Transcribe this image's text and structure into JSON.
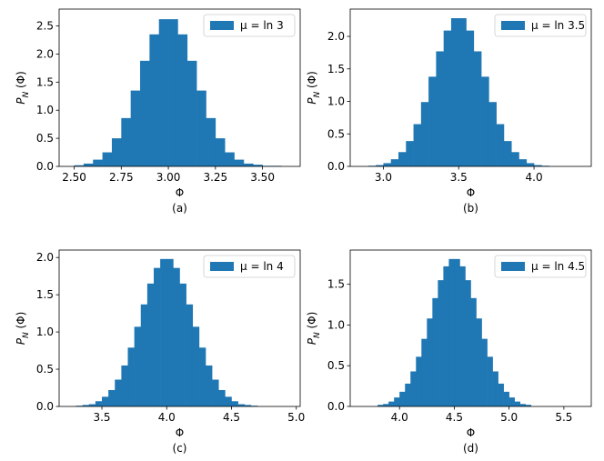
{
  "chart_data": [
    {
      "type": "histogram",
      "xlabel": "Φ",
      "ylabel": "P_N (Φ)",
      "caption": "(a)",
      "legend": "upper right",
      "color": "#1f77b4",
      "series": [
        {
          "name": "μ = ln 3",
          "color": "#1f77b4"
        }
      ],
      "bins": [
        2.5,
        2.55,
        2.6,
        2.65,
        2.7,
        2.75,
        2.8,
        2.85,
        2.9,
        2.95,
        3,
        3.05,
        3.1,
        3.15,
        3.2,
        3.25,
        3.3,
        3.35,
        3.4,
        3.45,
        3.5,
        3.55,
        3.6
      ],
      "counts": [
        0.02,
        0.05,
        0.12,
        0.25,
        0.5,
        0.86,
        1.35,
        1.88,
        2.35,
        2.62,
        2.62,
        2.35,
        1.88,
        1.35,
        0.86,
        0.5,
        0.25,
        0.12,
        0.05,
        0.03,
        0.01,
        0.01
      ],
      "xlim": [
        2.42,
        3.7
      ],
      "xticks": [
        {
          "value": 2.5,
          "label": "2.50"
        },
        2.75,
        {
          "value": 3,
          "label": "3.00"
        },
        3.25,
        {
          "value": 3.5,
          "label": "3.50"
        }
      ],
      "ylim": [
        0,
        2.8
      ],
      "yticks": [
        {
          "value": 0,
          "label": "0.0"
        },
        0.5,
        {
          "value": 1,
          "label": "1.0"
        },
        1.5,
        {
          "value": 2,
          "label": "2.0"
        },
        2.5
      ]
    },
    {
      "type": "histogram",
      "xlabel": "Φ",
      "ylabel": "P_N (Φ)",
      "caption": "(b)",
      "legend": "upper right",
      "color": "#1f77b4",
      "series": [
        {
          "name": "μ = ln 3.5",
          "color": "#1f77b4"
        }
      ],
      "bins": [
        2.9,
        2.95,
        3,
        3.05,
        3.1,
        3.15,
        3.2,
        3.25,
        3.3,
        3.35,
        3.4,
        3.45,
        3.5,
        3.55,
        3.6,
        3.65,
        3.7,
        3.75,
        3.8,
        3.85,
        3.9,
        3.95,
        4,
        4.05,
        4.1
      ],
      "counts": [
        0.01,
        0.02,
        0.05,
        0.11,
        0.22,
        0.39,
        0.65,
        0.99,
        1.38,
        1.77,
        2.09,
        2.28,
        2.28,
        2.09,
        1.77,
        1.38,
        0.99,
        0.65,
        0.39,
        0.22,
        0.11,
        0.05,
        0.02,
        0.01
      ],
      "xlim": [
        2.78,
        4.38
      ],
      "xticks": [
        {
          "value": 3,
          "label": "3.0"
        },
        3.5,
        {
          "value": 4,
          "label": "4.0"
        }
      ],
      "ylim": [
        0,
        2.42
      ],
      "yticks": [
        {
          "value": 0,
          "label": "0.0"
        },
        0.5,
        {
          "value": 1,
          "label": "1.0"
        },
        1.5,
        {
          "value": 2,
          "label": "2.0"
        }
      ]
    },
    {
      "type": "histogram",
      "xlabel": "Φ",
      "ylabel": "P_N (Φ)",
      "caption": "(c)",
      "legend": "upper right",
      "color": "#1f77b4",
      "series": [
        {
          "name": "μ = ln 4",
          "color": "#1f77b4"
        }
      ],
      "bins": [
        3.3,
        3.35,
        3.4,
        3.45,
        3.5,
        3.55,
        3.6,
        3.65,
        3.7,
        3.75,
        3.8,
        3.85,
        3.9,
        3.95,
        4,
        4.05,
        4.1,
        4.15,
        4.2,
        4.25,
        4.3,
        4.35,
        4.4,
        4.45,
        4.5,
        4.55,
        4.6,
        4.65,
        4.7
      ],
      "counts": [
        0.01,
        0.02,
        0.03,
        0.07,
        0.13,
        0.22,
        0.36,
        0.55,
        0.79,
        1.07,
        1.37,
        1.65,
        1.86,
        1.98,
        1.98,
        1.86,
        1.65,
        1.37,
        1.07,
        0.79,
        0.55,
        0.36,
        0.22,
        0.13,
        0.07,
        0.03,
        0.02,
        0.01
      ],
      "xlim": [
        3.17,
        5.03
      ],
      "xticks": [
        3.5,
        {
          "value": 4,
          "label": "4.0"
        },
        4.5,
        {
          "value": 5,
          "label": "5.0"
        }
      ],
      "ylim": [
        0,
        2.1
      ],
      "yticks": [
        {
          "value": 0,
          "label": "0.0"
        },
        0.5,
        {
          "value": 1,
          "label": "1.0"
        },
        1.5,
        {
          "value": 2,
          "label": "2.0"
        }
      ]
    },
    {
      "type": "histogram",
      "xlabel": "Φ",
      "ylabel": "P_N (Φ)",
      "caption": "(d)",
      "legend": "upper right",
      "color": "#1f77b4",
      "series": [
        {
          "name": "μ = ln 4.5",
          "color": "#1f77b4"
        }
      ],
      "bins": [
        3.8,
        3.85,
        3.9,
        3.95,
        4,
        4.05,
        4.1,
        4.15,
        4.2,
        4.25,
        4.3,
        4.35,
        4.4,
        4.45,
        4.5,
        4.55,
        4.6,
        4.65,
        4.7,
        4.75,
        4.8,
        4.85,
        4.9,
        4.95,
        5,
        5.05,
        5.1,
        5.15,
        5.2
      ],
      "counts": [
        0.02,
        0.03,
        0.06,
        0.11,
        0.18,
        0.28,
        0.43,
        0.61,
        0.83,
        1.08,
        1.33,
        1.55,
        1.72,
        1.81,
        1.81,
        1.72,
        1.55,
        1.33,
        1.08,
        0.83,
        0.61,
        0.43,
        0.28,
        0.18,
        0.11,
        0.06,
        0.03,
        0.02
      ],
      "xlim": [
        3.55,
        5.75
      ],
      "xticks": [
        {
          "value": 4,
          "label": "4.0"
        },
        4.5,
        {
          "value": 5,
          "label": "5.0"
        },
        5.5
      ],
      "ylim": [
        0,
        1.92
      ],
      "yticks": [
        {
          "value": 0,
          "label": "0.0"
        },
        0.5,
        {
          "value": 1,
          "label": "1.0"
        },
        1.5
      ]
    }
  ]
}
